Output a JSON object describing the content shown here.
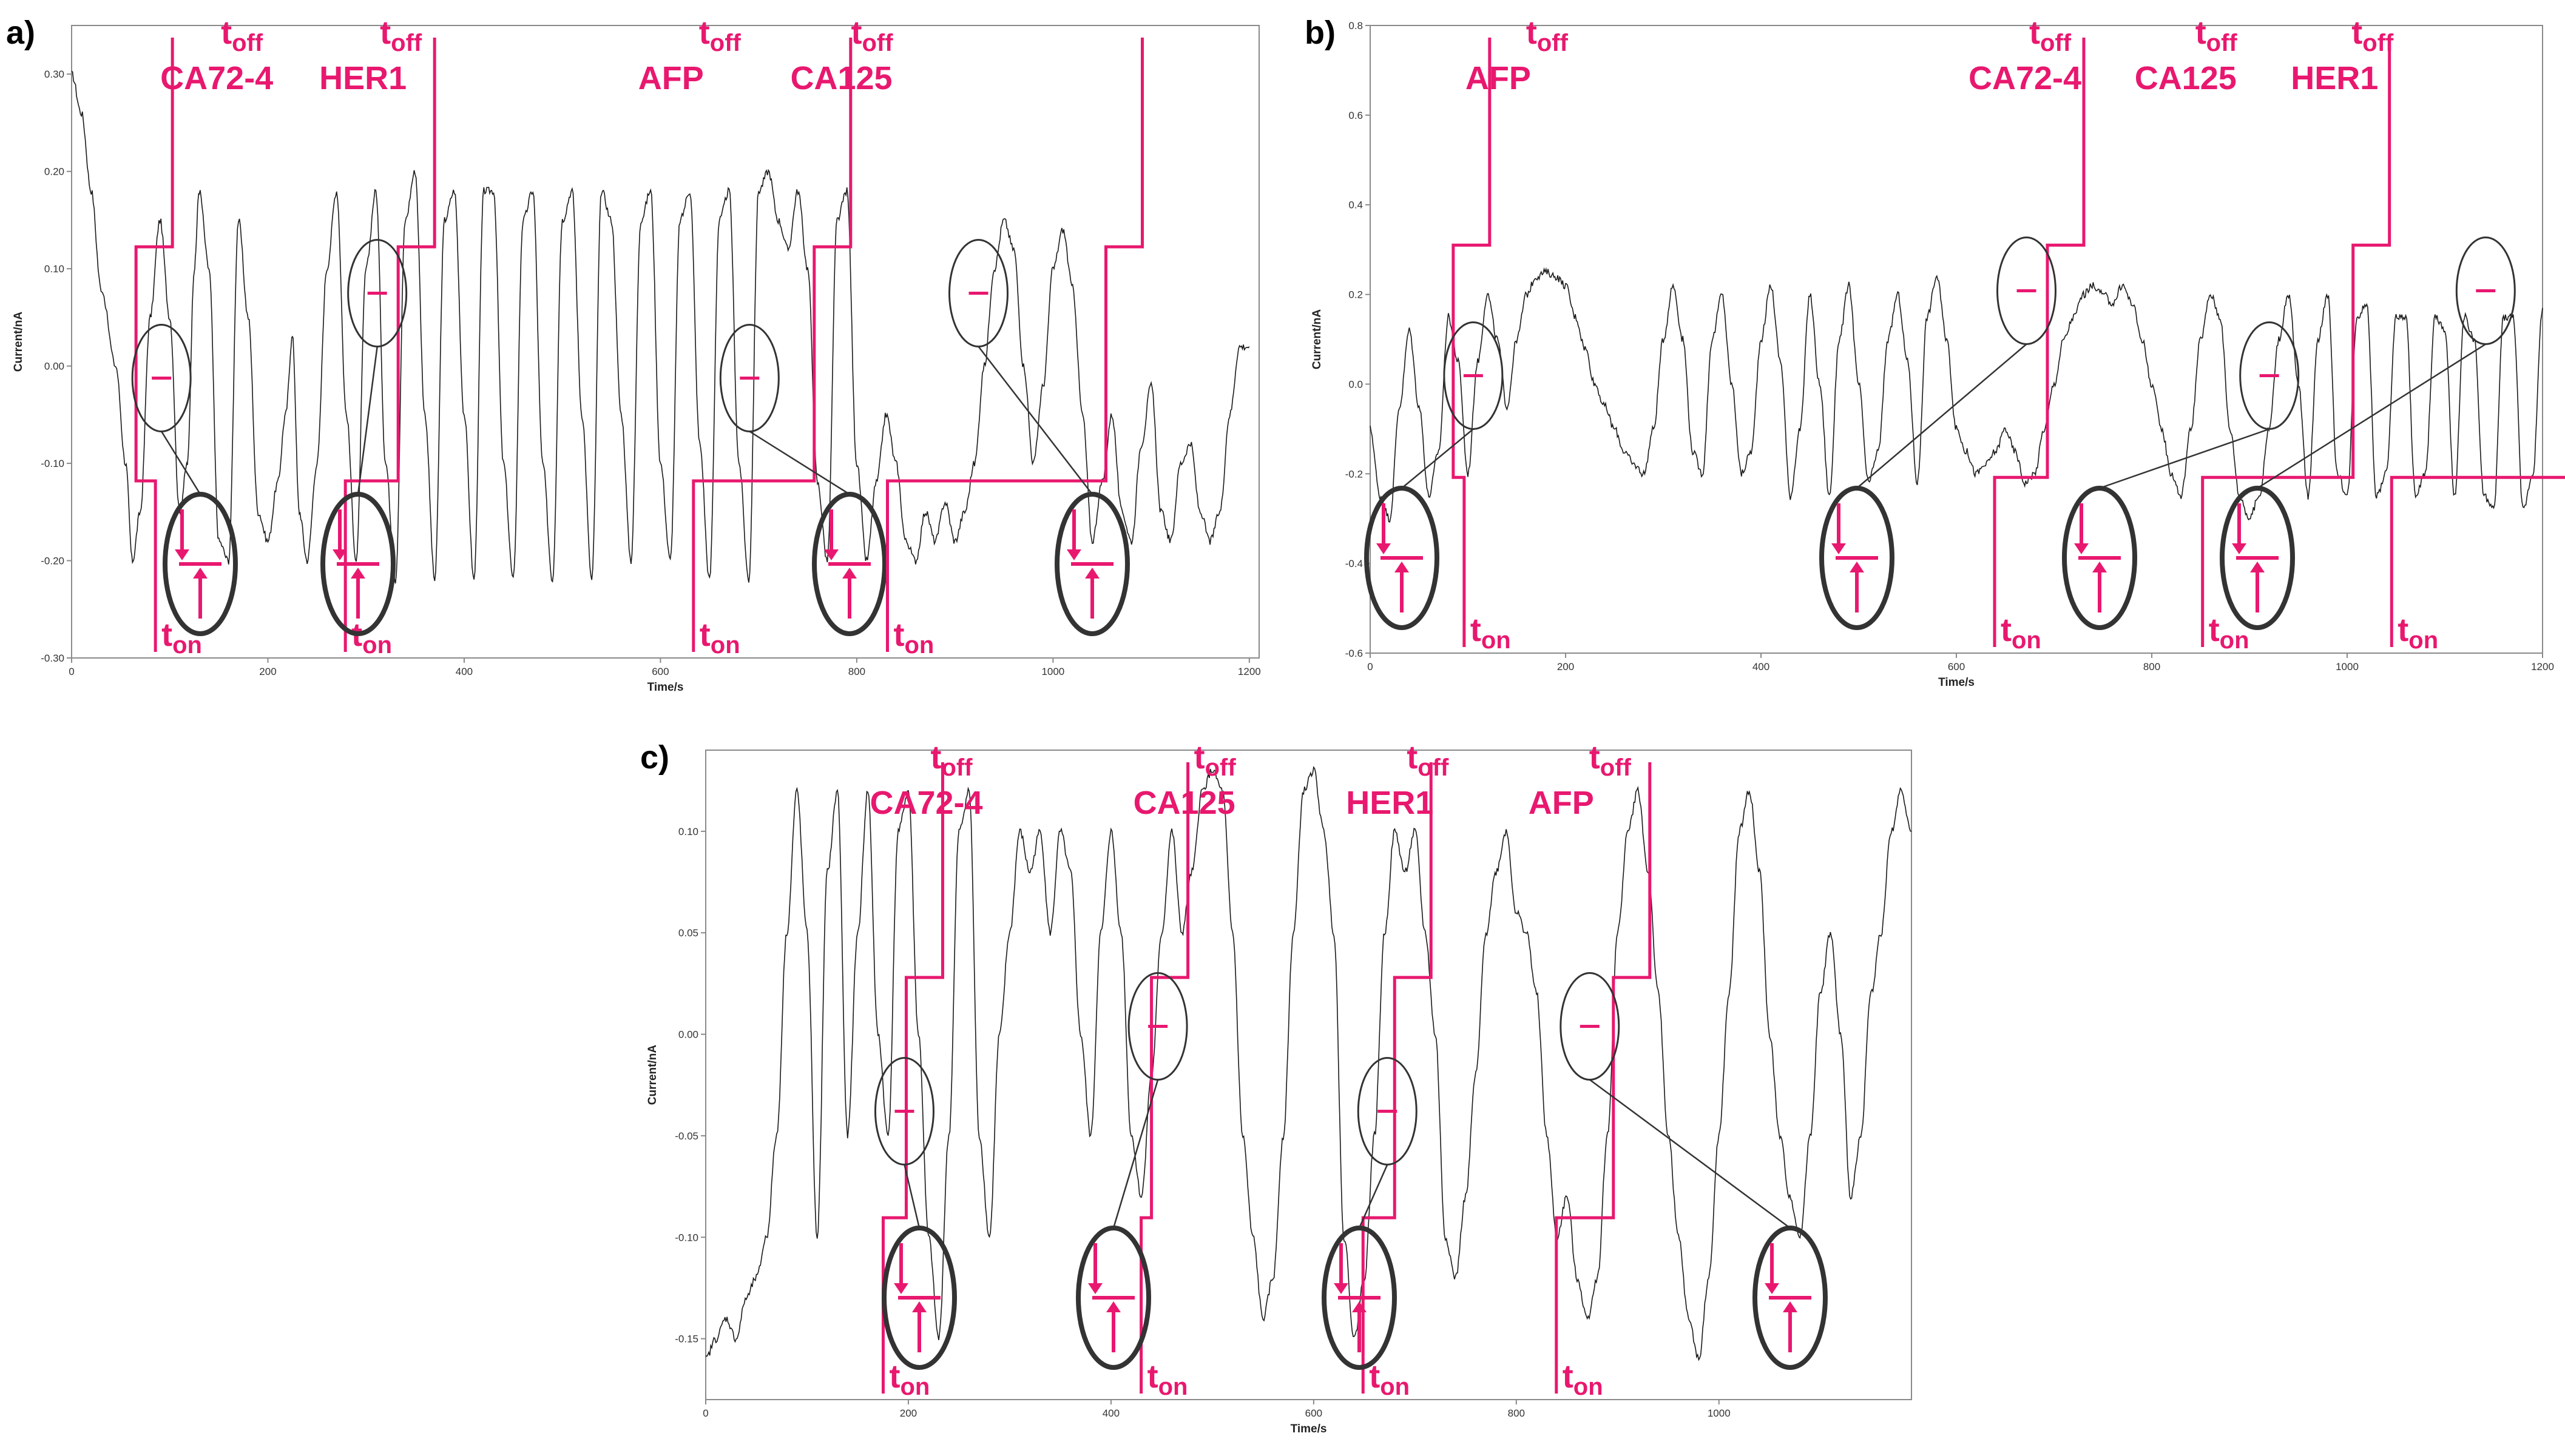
{
  "chart_data": [
    {
      "panel": "a)",
      "type": "line",
      "xlabel": "Time/s",
      "ylabel": "Current/nA",
      "xlim": [
        0,
        1210
      ],
      "ylim": [
        -0.3,
        0.35
      ],
      "xticks": [
        0,
        200,
        400,
        600,
        800,
        1000,
        1200
      ],
      "yticks": [
        -0.3,
        -0.2,
        -0.1,
        0.0,
        0.1,
        0.2,
        0.3
      ],
      "ytick_labels": [
        "-0.30",
        "-0.20",
        "-0.10",
        "0.00",
        "0.10",
        "0.20",
        "0.30"
      ],
      "grid": false,
      "series": [
        {
          "name": "current",
          "x": [
            0,
            10,
            20,
            30,
            45,
            55,
            62,
            70,
            80,
            90,
            100,
            110,
            118,
            125,
            130,
            140,
            150,
            160,
            170,
            180,
            190,
            200,
            210,
            218,
            225,
            232,
            240,
            250,
            260,
            270,
            280,
            290,
            300,
            310,
            320,
            330,
            340,
            350,
            360,
            370,
            380,
            390,
            400,
            410,
            420,
            430,
            440,
            450,
            460,
            470,
            480,
            490,
            500,
            510,
            520,
            530,
            540,
            550,
            560,
            570,
            580,
            590,
            600,
            610,
            620,
            630,
            640,
            650,
            660,
            670,
            680,
            690,
            700,
            710,
            720,
            730,
            740,
            750,
            760,
            770,
            780,
            790,
            800,
            810,
            820,
            830,
            840,
            850,
            860,
            870,
            880,
            890,
            900,
            910,
            920,
            930,
            940,
            950,
            960,
            970,
            980,
            990,
            1000,
            1010,
            1020,
            1030,
            1040,
            1050,
            1060,
            1070,
            1080,
            1090,
            1100,
            1110,
            1120,
            1130,
            1140,
            1150,
            1160,
            1170,
            1180,
            1190,
            1200
          ],
          "y": [
            0.3,
            0.26,
            0.18,
            0.08,
            0.0,
            -0.1,
            -0.2,
            -0.15,
            0.05,
            0.15,
            0.05,
            -0.15,
            -0.1,
            0.1,
            0.18,
            0.1,
            -0.18,
            -0.2,
            0.15,
            0.05,
            -0.15,
            -0.18,
            -0.12,
            -0.05,
            0.03,
            -0.15,
            -0.2,
            -0.1,
            0.1,
            0.18,
            -0.05,
            -0.2,
            0.1,
            0.18,
            -0.1,
            -0.22,
            0.15,
            0.2,
            -0.05,
            -0.22,
            0.15,
            0.18,
            -0.05,
            -0.22,
            0.18,
            0.18,
            -0.1,
            -0.22,
            0.15,
            0.18,
            -0.1,
            -0.22,
            0.15,
            0.18,
            -0.05,
            -0.22,
            0.18,
            0.15,
            -0.05,
            -0.2,
            0.15,
            0.18,
            -0.1,
            -0.2,
            0.15,
            0.18,
            -0.08,
            -0.22,
            0.15,
            0.18,
            -0.1,
            -0.22,
            0.18,
            0.2,
            0.15,
            0.12,
            0.18,
            0.1,
            -0.12,
            -0.2,
            0.15,
            0.18,
            -0.1,
            -0.2,
            -0.12,
            -0.05,
            -0.1,
            -0.18,
            -0.2,
            -0.15,
            -0.18,
            -0.14,
            -0.18,
            -0.15,
            -0.1,
            0.0,
            0.1,
            0.15,
            0.12,
            0.0,
            -0.1,
            -0.02,
            0.1,
            0.14,
            0.08,
            -0.05,
            -0.18,
            -0.12,
            -0.05,
            -0.15,
            -0.18,
            -0.08,
            -0.02,
            -0.15,
            -0.18,
            -0.1,
            -0.08,
            -0.15,
            -0.18,
            -0.15,
            -0.05,
            0.02,
            0.02
          ]
        }
      ],
      "annotations": [
        {
          "analyte": "CA72-4",
          "t_off": "t",
          "t_off_sub": "off",
          "t_on": "t",
          "t_on_sub": "on"
        },
        {
          "analyte": "HER1",
          "t_off": "t",
          "t_off_sub": "off",
          "t_on": "t",
          "t_on_sub": "on"
        },
        {
          "analyte": "AFP",
          "t_off": "t",
          "t_off_sub": "off",
          "t_on": "t",
          "t_on_sub": "on"
        },
        {
          "analyte": "CA125",
          "t_off": "t",
          "t_off_sub": "off",
          "t_on": "t",
          "t_on_sub": "on"
        }
      ]
    },
    {
      "panel": "b)",
      "type": "line",
      "xlabel": "Time/s",
      "ylabel": "Current/nA",
      "xlim": [
        0,
        1200
      ],
      "ylim": [
        -0.6,
        0.8
      ],
      "xticks": [
        0,
        200,
        400,
        600,
        800,
        1000,
        1200
      ],
      "yticks": [
        -0.6,
        -0.4,
        -0.2,
        0.0,
        0.2,
        0.4,
        0.6,
        0.8
      ],
      "ytick_labels": [
        "-0.6",
        "-0.4",
        "-0.2",
        "0.0",
        "0.2",
        "0.4",
        "0.6",
        "0.8"
      ],
      "grid": false,
      "series": [
        {
          "name": "current",
          "x": [
            0,
            10,
            20,
            30,
            40,
            50,
            60,
            70,
            80,
            90,
            100,
            110,
            120,
            130,
            140,
            150,
            160,
            170,
            180,
            190,
            200,
            210,
            220,
            230,
            240,
            250,
            260,
            270,
            280,
            290,
            300,
            310,
            320,
            330,
            340,
            350,
            360,
            370,
            380,
            390,
            400,
            410,
            420,
            430,
            440,
            450,
            460,
            470,
            480,
            490,
            500,
            510,
            520,
            530,
            540,
            550,
            560,
            570,
            580,
            590,
            600,
            610,
            620,
            630,
            640,
            650,
            660,
            670,
            680,
            690,
            700,
            710,
            720,
            730,
            740,
            750,
            760,
            770,
            780,
            790,
            800,
            810,
            820,
            830,
            840,
            850,
            860,
            870,
            880,
            890,
            900,
            910,
            920,
            930,
            940,
            950,
            960,
            970,
            980,
            990,
            1000,
            1010,
            1020,
            1030,
            1040,
            1050,
            1060,
            1070,
            1080,
            1090,
            1100,
            1110,
            1120,
            1130,
            1140,
            1150,
            1160,
            1170,
            1180,
            1190,
            1200
          ],
          "y": [
            -0.1,
            -0.25,
            -0.3,
            -0.05,
            0.12,
            -0.05,
            -0.25,
            -0.15,
            0.15,
            0.05,
            -0.2,
            0.05,
            0.2,
            0.1,
            -0.05,
            0.1,
            0.2,
            0.24,
            0.25,
            0.24,
            0.22,
            0.15,
            0.08,
            0.0,
            -0.05,
            -0.1,
            -0.15,
            -0.18,
            -0.2,
            -0.1,
            0.1,
            0.22,
            0.1,
            -0.15,
            -0.2,
            0.1,
            0.2,
            0.0,
            -0.2,
            -0.15,
            0.1,
            0.22,
            0.05,
            -0.25,
            -0.1,
            0.2,
            0.0,
            -0.25,
            0.1,
            0.22,
            0.0,
            -0.22,
            -0.15,
            0.1,
            0.2,
            0.05,
            -0.22,
            0.15,
            0.24,
            0.1,
            -0.1,
            -0.15,
            -0.2,
            -0.18,
            -0.15,
            -0.1,
            -0.15,
            -0.22,
            -0.2,
            -0.1,
            0.0,
            0.1,
            0.15,
            0.2,
            0.22,
            0.2,
            0.18,
            0.22,
            0.18,
            0.1,
            0.0,
            -0.1,
            -0.2,
            -0.25,
            -0.1,
            0.1,
            0.2,
            0.15,
            -0.1,
            -0.25,
            -0.3,
            -0.25,
            -0.1,
            0.1,
            0.2,
            0.0,
            -0.25,
            0.1,
            0.2,
            -0.2,
            -0.25,
            0.15,
            0.18,
            -0.25,
            -0.2,
            0.15,
            0.15,
            -0.25,
            -0.2,
            0.15,
            0.12,
            -0.25,
            0.15,
            0.1,
            -0.25,
            -0.28,
            0.15,
            0.15,
            -0.28,
            -0.2,
            0.17
          ]
        }
      ],
      "annotations": [
        {
          "analyte": "AFP",
          "t_off": "t",
          "t_off_sub": "off",
          "t_on": "t",
          "t_on_sub": "on"
        },
        {
          "analyte": "CA72-4",
          "t_off": "t",
          "t_off_sub": "off",
          "t_on": "t",
          "t_on_sub": "on"
        },
        {
          "analyte": "CA125",
          "t_off": "t",
          "t_off_sub": "off",
          "t_on": "t",
          "t_on_sub": "on"
        },
        {
          "analyte": "HER1",
          "t_off": "t",
          "t_off_sub": "off",
          "t_on": "t",
          "t_on_sub": "on"
        }
      ]
    },
    {
      "panel": "c)",
      "type": "line",
      "xlabel": "Time/s",
      "ylabel": "Current/nA",
      "xlim": [
        0,
        1190
      ],
      "ylim": [
        -0.18,
        0.14
      ],
      "xticks": [
        0,
        200,
        400,
        600,
        800,
        1000
      ],
      "yticks": [
        -0.15,
        -0.1,
        -0.05,
        0.0,
        0.05,
        0.1
      ],
      "ytick_labels": [
        "-0.15",
        "-0.10",
        "-0.05",
        "0.00",
        "0.05",
        "0.10"
      ],
      "grid": false,
      "series": [
        {
          "name": "current",
          "x": [
            0,
            10,
            20,
            30,
            40,
            50,
            60,
            70,
            80,
            90,
            100,
            110,
            120,
            130,
            140,
            150,
            160,
            170,
            180,
            190,
            200,
            210,
            220,
            230,
            240,
            250,
            260,
            270,
            280,
            290,
            300,
            310,
            320,
            330,
            340,
            350,
            360,
            370,
            380,
            390,
            400,
            410,
            420,
            430,
            440,
            450,
            460,
            470,
            480,
            490,
            500,
            510,
            520,
            530,
            540,
            550,
            560,
            570,
            580,
            590,
            600,
            610,
            620,
            630,
            640,
            650,
            660,
            670,
            680,
            690,
            700,
            710,
            720,
            730,
            740,
            750,
            760,
            770,
            780,
            790,
            800,
            810,
            820,
            830,
            840,
            850,
            860,
            870,
            880,
            890,
            900,
            910,
            920,
            930,
            940,
            950,
            960,
            970,
            980,
            990,
            1000,
            1010,
            1020,
            1030,
            1040,
            1050,
            1060,
            1070,
            1080,
            1090,
            1100,
            1110,
            1120,
            1130,
            1140,
            1150,
            1160,
            1170,
            1180,
            1190
          ],
          "y": [
            -0.16,
            -0.15,
            -0.14,
            -0.15,
            -0.13,
            -0.12,
            -0.1,
            -0.05,
            0.05,
            0.12,
            0.05,
            -0.1,
            0.08,
            0.12,
            -0.05,
            0.05,
            0.12,
            0.0,
            -0.05,
            0.1,
            0.12,
            0.0,
            -0.1,
            -0.15,
            -0.05,
            0.1,
            0.12,
            -0.05,
            -0.1,
            0.0,
            0.05,
            0.1,
            0.08,
            0.1,
            0.05,
            0.1,
            0.08,
            0.0,
            -0.05,
            0.05,
            0.1,
            0.05,
            -0.05,
            -0.08,
            -0.02,
            0.05,
            0.1,
            0.05,
            0.08,
            0.12,
            0.13,
            0.12,
            0.05,
            -0.05,
            -0.1,
            -0.14,
            -0.12,
            -0.05,
            0.05,
            0.12,
            0.13,
            0.1,
            0.05,
            -0.1,
            -0.15,
            -0.12,
            -0.05,
            0.05,
            0.1,
            0.08,
            0.1,
            0.05,
            0.0,
            -0.1,
            -0.12,
            -0.08,
            -0.02,
            0.05,
            0.08,
            0.1,
            0.06,
            0.05,
            0.02,
            -0.05,
            -0.1,
            -0.08,
            -0.12,
            -0.14,
            -0.12,
            -0.05,
            0.05,
            0.1,
            0.12,
            0.08,
            0.02,
            -0.05,
            -0.1,
            -0.14,
            -0.16,
            -0.12,
            -0.05,
            0.02,
            0.1,
            0.12,
            0.08,
            0.0,
            -0.05,
            -0.08,
            -0.1,
            -0.05,
            0.02,
            0.05,
            0.0,
            -0.08,
            -0.05,
            0.02,
            0.05,
            0.1,
            0.12,
            0.1
          ]
        }
      ],
      "annotations": [
        {
          "analyte": "CA72-4",
          "t_off": "t",
          "t_off_sub": "off",
          "t_on": "t",
          "t_on_sub": "on"
        },
        {
          "analyte": "CA125",
          "t_off": "t",
          "t_off_sub": "off",
          "t_on": "t",
          "t_on_sub": "on"
        },
        {
          "analyte": "HER1",
          "t_off": "t",
          "t_off_sub": "off",
          "t_on": "t",
          "t_on_sub": "on"
        },
        {
          "analyte": "AFP",
          "t_off": "t",
          "t_off_sub": "off",
          "t_on": "t",
          "t_on_sub": "on"
        }
      ]
    }
  ],
  "colors": {
    "annotation": "#e8186f",
    "trace": "#1a1a1a",
    "frame": "#8a8a8a",
    "circle": "#333333"
  }
}
